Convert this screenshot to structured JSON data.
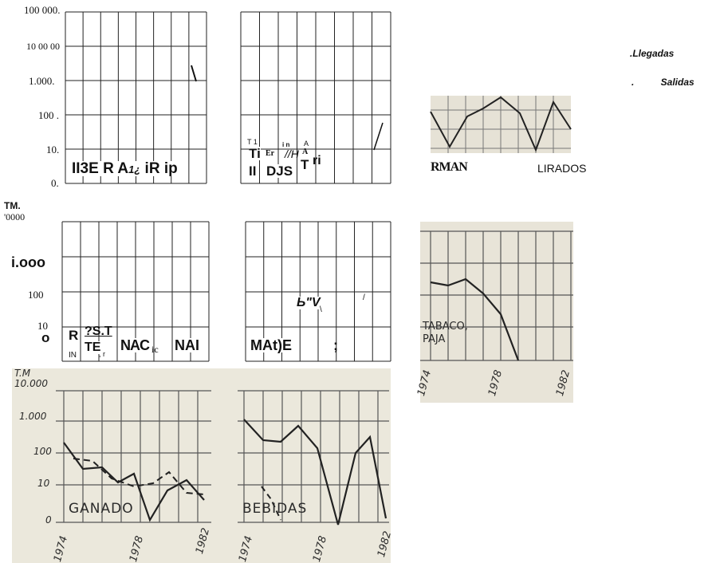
{
  "top_left": {
    "y_labels": [
      "100 000.",
      "10 00 00",
      "1.000.",
      "100 .",
      "10.",
      "0."
    ],
    "caption": [
      "II3E R A",
      "1¿",
      "iR ip"
    ]
  },
  "top_right": {
    "caption": [
      "T 1",
      "Ti",
      "Er",
      "i n",
      "//H",
      "A",
      "A",
      "T",
      "ri",
      "II",
      "DJS"
    ]
  },
  "legend": [
    ".Llegadas",
    ". Salidas"
  ],
  "photo_1": {
    "captions": [
      "RMAN",
      "LIRADOS"
    ]
  },
  "middle_left": {
    "y_labels": [
      "TM.",
      "'0000",
      "i.ooo",
      "100",
      "10",
      "o"
    ],
    "caption": [
      "R",
      "IN",
      "?S.T",
      "TE",
      ", r",
      "NAC",
      "ic",
      "NAI"
    ]
  },
  "middle_right": {
    "caption": [
      "MAt)E",
      ";",
      "Ь\"V",
      "\\",
      "/"
    ]
  },
  "photo_2": {
    "y_labels": [
      "T.M",
      "10.000",
      "1.000",
      "100",
      "10",
      "0"
    ],
    "labels": [
      "GANADO",
      "BEBIDAS"
    ],
    "years": [
      "1974",
      "1978",
      "1982",
      "1974",
      "1978",
      "1982"
    ]
  },
  "photo_3": {
    "labels": [
      "TABACO,",
      "PAJA"
    ],
    "years": [
      "1974",
      "1978",
      "1982"
    ]
  }
}
